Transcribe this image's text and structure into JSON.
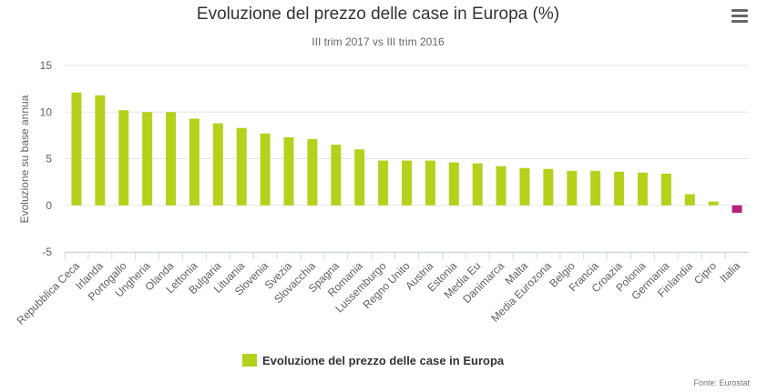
{
  "chart_data": {
    "type": "bar",
    "title": "Evoluzione del prezzo delle case in Europa (%)",
    "subtitle": "III trim 2017 vs III trim 2016",
    "ylabel": "Evoluzione su base annua",
    "xlabel": "",
    "ylim": [
      -5,
      15
    ],
    "yticks": [
      -5,
      0,
      5,
      10,
      15
    ],
    "grid": true,
    "legend_position": "bottom-center",
    "categories": [
      "Repubblica Ceca",
      "Irlanda",
      "Portogallo",
      "Ungheria",
      "Olanda",
      "Lettonia",
      "Bulgaria",
      "Lituania",
      "Slovenia",
      "Svezia",
      "Slovacchia",
      "Spagna",
      "Romania",
      "Lussemburgo",
      "Regno Unito",
      "Austria",
      "Estonia",
      "Media Eu",
      "Danimarca",
      "Malta",
      "Media Eurozona",
      "Belgio",
      "Francia",
      "Croazia",
      "Polonia",
      "Germania",
      "Finlandia",
      "Cipro",
      "Italia"
    ],
    "series": [
      {
        "name": "Evoluzione del prezzo delle case in Europa",
        "color": "#b5d11b",
        "values": [
          12.1,
          11.8,
          10.2,
          10.0,
          10.0,
          9.3,
          8.8,
          8.3,
          7.7,
          7.3,
          7.1,
          6.5,
          6.0,
          4.8,
          4.8,
          4.8,
          4.6,
          4.5,
          4.2,
          4.0,
          3.9,
          3.7,
          3.7,
          3.6,
          3.5,
          3.4,
          1.2,
          0.4,
          -0.8
        ]
      }
    ],
    "highlight": {
      "category": "Italia",
      "color": "#b5247f"
    }
  },
  "credits": "Fonte: Eurostat",
  "menu_icon": "hamburger-menu-icon"
}
